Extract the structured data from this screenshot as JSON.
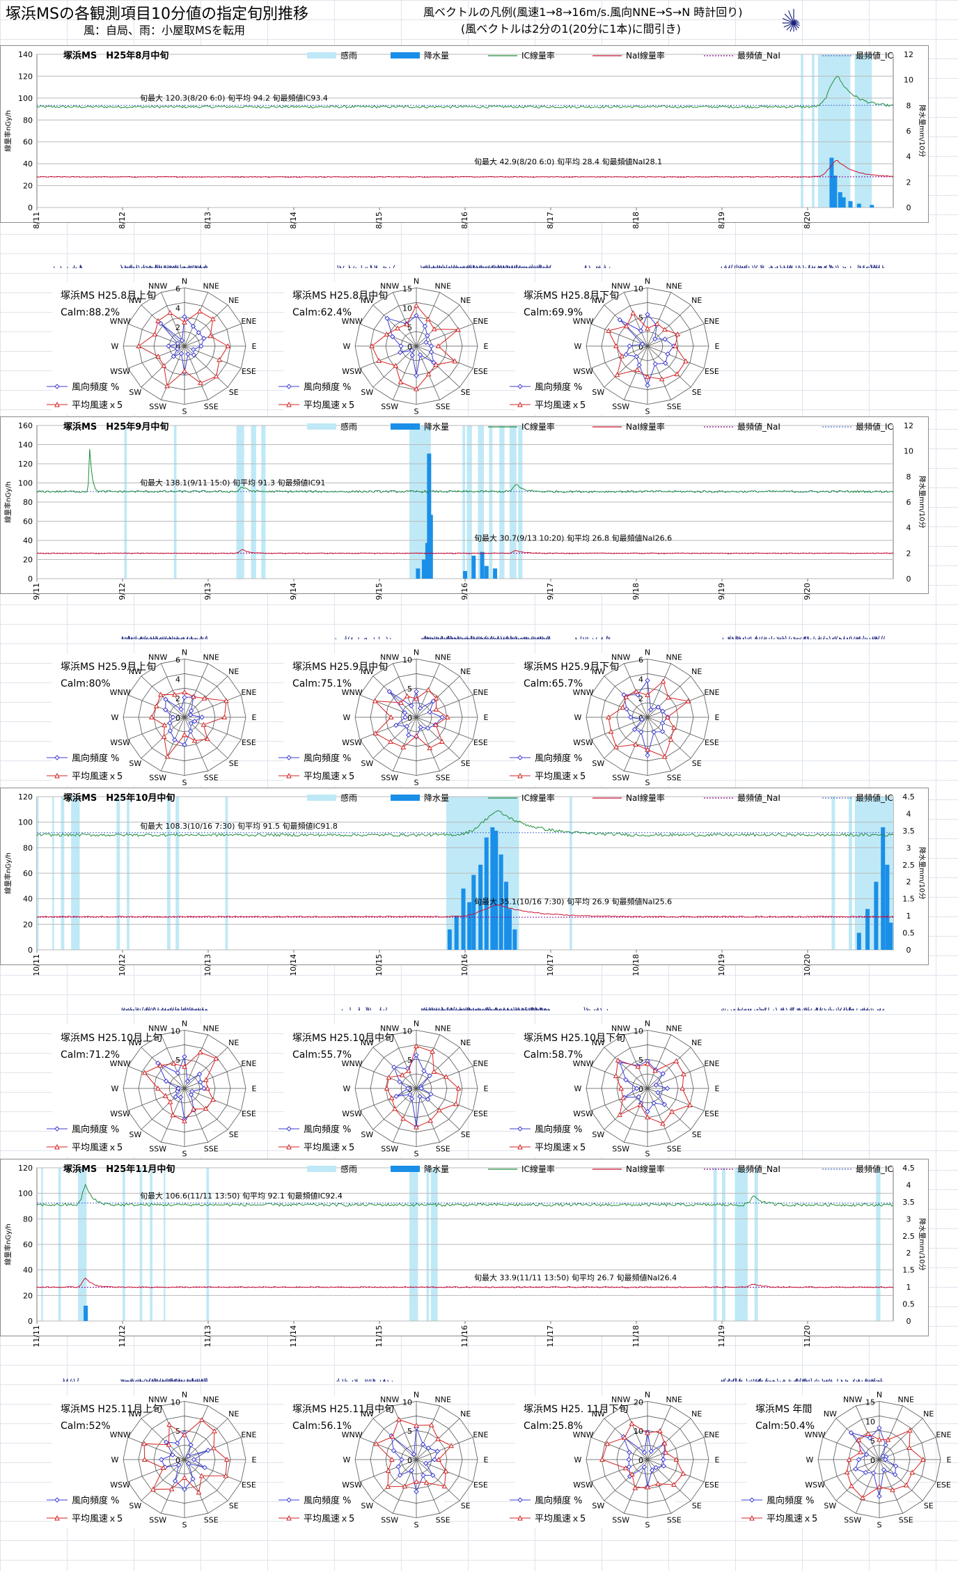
{
  "header": {
    "title": "塚浜MSの各観測項目10分値の指定旬別推移",
    "wind_source": "風：自局、雨：小屋取MSを転用",
    "vector_legend_1": "風ベクトルの凡例(風速1→8→16m/s.風向NNE→S→N 時計回り)",
    "vector_legend_2": "(風ベクトルは2分の1(20分に1本)に間引き)"
  },
  "series_legend": {
    "rain": "感雨",
    "precip": "降水量",
    "ic": "IC線量率",
    "nai": "NaI線量率",
    "mode_nai": "最頻値_NaI",
    "mode_ic": "最頻値_IC"
  },
  "axis_labels": {
    "left": "線量率nGy/h",
    "right": "降水量mm/10分"
  },
  "colors": {
    "ic": "#1e8c3a",
    "nai": "#c8102e",
    "mode_nai": "#8b008b",
    "mode_ic": "#4a6fd0",
    "precip": "#1a8fe8",
    "rain": "#bfe9f6",
    "wind": "#1a237e",
    "rose_freq": "#3b3bd6",
    "rose_speed": "#d42020"
  },
  "rose_labels": {
    "dirs": [
      "N",
      "NNE",
      "NE",
      "ENE",
      "E",
      "ESE",
      "SE",
      "SSE",
      "S",
      "SSW",
      "SW",
      "WSW",
      "W",
      "WNW",
      "NW",
      "NNW"
    ],
    "legend_freq": "風向頻度 %",
    "legend_speed": "平均風速ｘ5"
  },
  "chart_data": [
    {
      "type": "line",
      "title": "塚浜MS　H25年8月中旬",
      "x": [
        "8/11",
        "8/12",
        "8/13",
        "8/14",
        "8/15",
        "8/16",
        "8/17",
        "8/18",
        "8/19",
        "8/20"
      ],
      "ylim": [
        0,
        140
      ],
      "yticks": [
        0,
        20,
        40,
        60,
        80,
        100,
        120,
        140
      ],
      "y2lim": [
        0,
        12
      ],
      "y2ticks": [
        0,
        2,
        4,
        6,
        8,
        10,
        12
      ],
      "ic_level": 92,
      "nai_level": 28,
      "mode_ic": 93.4,
      "mode_nai": 28.1,
      "ic_annotation": "旬最大 120.3(8/20 6:0)  旬平均 94.2  旬最頻値IC93.4",
      "nai_annotation": "旬最大 42.9(8/20 6:0)  旬平均 28.4  旬最頻値NaI28.1",
      "ic_events": [
        {
          "day": 9.35,
          "peak": 120.3,
          "width": 0.25
        }
      ],
      "nai_events": [
        {
          "day": 9.35,
          "peak": 42.9,
          "width": 0.25
        }
      ],
      "rain_spans": [
        [
          8.92,
          8.95
        ],
        [
          9.05,
          9.08
        ],
        [
          9.12,
          9.5
        ],
        [
          9.55,
          9.75
        ]
      ],
      "precip": [
        [
          9.28,
          3.9
        ],
        [
          9.32,
          2.5
        ],
        [
          9.38,
          1.2
        ],
        [
          9.42,
          0.8
        ],
        [
          9.5,
          0.5
        ],
        [
          9.6,
          0.3
        ],
        [
          9.75,
          0.2
        ]
      ]
    },
    {
      "type": "line",
      "title": "塚浜MS　H25年9月中旬",
      "x": [
        "9/11",
        "9/12",
        "9/13",
        "9/14",
        "9/15",
        "9/16",
        "9/17",
        "9/18",
        "9/19",
        "9/20"
      ],
      "ylim": [
        0,
        160
      ],
      "yticks": [
        0,
        20,
        40,
        60,
        80,
        100,
        120,
        140,
        160
      ],
      "y2lim": [
        0,
        12
      ],
      "y2ticks": [
        0,
        2,
        4,
        6,
        8,
        10,
        12
      ],
      "ic_level": 91,
      "nai_level": 26.5,
      "mode_ic": 91,
      "mode_nai": 26.6,
      "ic_annotation": "旬最大 138.1(9/11 15:0)  旬平均 91.3  旬最頻値IC91",
      "nai_annotation": "旬最大 30.7(9/13 10:20)  旬平均 26.8  旬最頻値NaI26.6",
      "ic_events": [
        {
          "day": 0.62,
          "peak": 138.1,
          "width": 0.03
        },
        {
          "day": 2.4,
          "peak": 96,
          "width": 0.08
        },
        {
          "day": 5.6,
          "peak": 98,
          "width": 0.1
        }
      ],
      "nai_events": [
        {
          "day": 2.4,
          "peak": 30.7,
          "width": 0.08
        },
        {
          "day": 5.6,
          "peak": 29.5,
          "width": 0.1
        }
      ],
      "rain_spans": [
        [
          1.02,
          1.05
        ],
        [
          1.6,
          1.63
        ],
        [
          2.33,
          2.42
        ],
        [
          2.5,
          2.56
        ],
        [
          2.62,
          2.67
        ],
        [
          4.35,
          4.6
        ],
        [
          4.97,
          5.0
        ],
        [
          5.02,
          5.08
        ],
        [
          5.15,
          5.22
        ],
        [
          5.28,
          5.32
        ],
        [
          5.4,
          5.46
        ],
        [
          5.52,
          5.6
        ],
        [
          5.62,
          5.67
        ]
      ],
      "precip": [
        [
          4.45,
          0.8
        ],
        [
          4.52,
          1.5
        ],
        [
          4.56,
          2.8
        ],
        [
          4.58,
          9.8
        ],
        [
          4.6,
          5
        ],
        [
          5.0,
          0.6
        ],
        [
          5.1,
          1.8
        ],
        [
          5.2,
          2.1
        ],
        [
          5.25,
          1.0
        ],
        [
          5.35,
          0.8
        ]
      ]
    },
    {
      "type": "line",
      "title": "塚浜MS　H25年10月中旬",
      "x": [
        "10/11",
        "10/12",
        "10/13",
        "10/14",
        "10/15",
        "10/16",
        "10/17",
        "10/18",
        "10/19",
        "10/20"
      ],
      "ylim": [
        0,
        120
      ],
      "yticks": [
        0,
        20,
        40,
        60,
        80,
        100,
        120
      ],
      "y2lim": [
        0,
        4.5
      ],
      "y2ticks": [
        0,
        0.5,
        1,
        1.5,
        2,
        2.5,
        3,
        3.5,
        4,
        4.5
      ],
      "ic_level": 90,
      "nai_level": 26,
      "mode_ic": 91.8,
      "mode_nai": 25.6,
      "ic_annotation": "旬最大 108.3(10/16 7:30)  旬平均 91.5  旬最頻値IC91.8",
      "nai_annotation": "旬最大 35.1(10/16 7:30)  旬平均 26.9  旬最頻値NaI25.6",
      "ic_events": [
        {
          "day": 5.4,
          "peak": 108.3,
          "width": 0.5
        }
      ],
      "nai_events": [
        {
          "day": 5.4,
          "peak": 35.1,
          "width": 0.5
        }
      ],
      "rain_spans": [
        [
          0.0,
          0.02
        ],
        [
          0.18,
          0.2
        ],
        [
          0.28,
          0.32
        ],
        [
          0.4,
          0.5
        ],
        [
          0.93,
          0.97
        ],
        [
          1.05,
          1.08
        ],
        [
          1.52,
          1.56
        ],
        [
          1.62,
          1.66
        ],
        [
          2.2,
          2.23
        ],
        [
          4.78,
          5.63
        ],
        [
          6.22,
          6.25
        ],
        [
          9.28,
          9.32
        ],
        [
          9.48,
          9.52
        ],
        [
          9.55,
          10.0
        ]
      ],
      "precip": [
        [
          4.82,
          0.6
        ],
        [
          4.9,
          1.0
        ],
        [
          4.98,
          1.8
        ],
        [
          5.05,
          1.4
        ],
        [
          5.1,
          2.2
        ],
        [
          5.18,
          2.5
        ],
        [
          5.25,
          3.3
        ],
        [
          5.32,
          3.6
        ],
        [
          5.36,
          3.5
        ],
        [
          5.42,
          2.8
        ],
        [
          5.48,
          2.0
        ],
        [
          5.52,
          1.2
        ],
        [
          5.58,
          0.6
        ],
        [
          9.6,
          0.5
        ],
        [
          9.7,
          1.2
        ],
        [
          9.8,
          2.0
        ],
        [
          9.88,
          3.6
        ],
        [
          9.93,
          2.5
        ],
        [
          9.97,
          0.8
        ]
      ]
    },
    {
      "type": "line",
      "title": "塚浜MS　H25年11月中旬",
      "x": [
        "11/11",
        "11/12",
        "11/13",
        "11/14",
        "11/15",
        "11/16",
        "11/17",
        "11/18",
        "11/19",
        "11/20"
      ],
      "ylim": [
        0,
        120
      ],
      "yticks": [
        0,
        20,
        40,
        60,
        80,
        100,
        120
      ],
      "y2lim": [
        0,
        4.5
      ],
      "y2ticks": [
        0,
        0.5,
        1,
        1.5,
        2,
        2.5,
        3,
        3.5,
        4,
        4.5
      ],
      "ic_level": 91,
      "nai_level": 26.5,
      "mode_ic": 92.4,
      "mode_nai": 26.4,
      "ic_annotation": "旬最大 106.6(11/11 13:50)  旬平均 92.1  旬最頻値IC92.4",
      "nai_annotation": "旬最大 33.9(11/11 13:50)  旬平均 26.7  旬最頻値NaI26.4",
      "ic_events": [
        {
          "day": 0.57,
          "peak": 106.6,
          "width": 0.1
        },
        {
          "day": 8.38,
          "peak": 98,
          "width": 0.12
        }
      ],
      "nai_events": [
        {
          "day": 0.57,
          "peak": 33.9,
          "width": 0.1
        },
        {
          "day": 8.38,
          "peak": 29,
          "width": 0.12
        }
      ],
      "rain_spans": [
        [
          0.05,
          0.07
        ],
        [
          0.25,
          0.28
        ],
        [
          0.48,
          0.58
        ],
        [
          1.0,
          1.03
        ],
        [
          1.2,
          1.23
        ],
        [
          1.32,
          1.35
        ],
        [
          1.48,
          1.5
        ],
        [
          1.98,
          2.01
        ],
        [
          4.35,
          4.45
        ],
        [
          4.55,
          4.58
        ],
        [
          4.6,
          4.68
        ],
        [
          7.9,
          7.94
        ],
        [
          8.0,
          8.04
        ],
        [
          8.15,
          8.3
        ],
        [
          8.38,
          8.42
        ],
        [
          9.8,
          9.85
        ]
      ],
      "precip": [
        [
          0.57,
          0.45
        ]
      ]
    }
  ],
  "roses": [
    [
      {
        "title": "塚浜MS H25.8月上旬",
        "calm": "Calm:88.2%",
        "ticks": [
          "0",
          "2",
          "4",
          "6"
        ]
      },
      {
        "title": "塚浜MS H25.8月中旬",
        "calm": "Calm:62.4%",
        "ticks": [
          "0",
          "5",
          "10",
          "15"
        ]
      },
      {
        "title": "塚浜MS H25.8月下旬",
        "calm": "Calm:69.9%",
        "ticks": [
          "0",
          "5",
          "10"
        ]
      }
    ],
    [
      {
        "title": "塚浜MS H25.9月上旬",
        "calm": "Calm:80%",
        "ticks": [
          "0",
          "2",
          "4",
          "6"
        ]
      },
      {
        "title": "塚浜MS H25.9月中旬",
        "calm": "Calm:75.1%",
        "ticks": [
          "0",
          "5",
          "10"
        ]
      },
      {
        "title": "塚浜MS H25.9月下旬",
        "calm": "Calm:65.7%",
        "ticks": [
          "0",
          "2",
          "4",
          "6"
        ]
      }
    ],
    [
      {
        "title": "塚浜MS H25.10月上旬",
        "calm": "Calm:71.2%",
        "ticks": [
          "0",
          "5",
          "10"
        ]
      },
      {
        "title": "塚浜MS H25.10月中旬",
        "calm": "Calm:55.7%",
        "ticks": [
          "0",
          "5",
          "10"
        ]
      },
      {
        "title": "塚浜MS H25.10月下旬",
        "calm": "Calm:58.7%",
        "ticks": [
          "0",
          "5",
          "10"
        ]
      }
    ],
    [
      {
        "title": "塚浜MS H25.11月上旬",
        "calm": "Calm:52%",
        "ticks": [
          "0",
          "5",
          "10"
        ]
      },
      {
        "title": "塚浜MS H25.11月中旬",
        "calm": "Calm:56.1%",
        "ticks": [
          "0",
          "5",
          "10"
        ]
      },
      {
        "title": "塚浜MS H25. 11月下旬",
        "calm": "Calm:25.8%",
        "ticks": [
          "0",
          "10",
          "20"
        ]
      },
      {
        "title": "塚浜MS 年間",
        "calm": "Calm:50.4%",
        "ticks": [
          "0",
          "5",
          "10",
          "15"
        ]
      }
    ]
  ]
}
